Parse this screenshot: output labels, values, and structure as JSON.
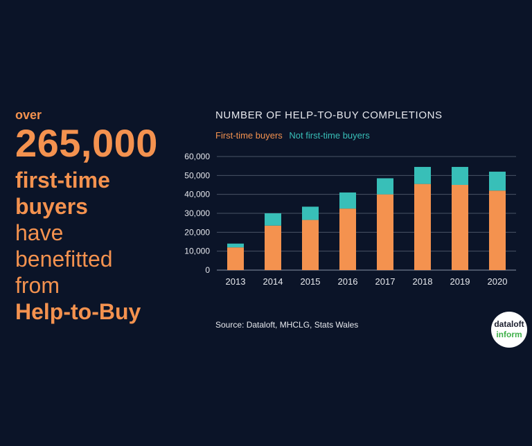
{
  "headline": {
    "over": "over",
    "number": "265,000",
    "line1": "first-time",
    "line2": "buyers",
    "line3": "have",
    "line4": "benefitted",
    "line5": "from",
    "line6": "Help-to-Buy"
  },
  "source": "Source: Dataloft, MHCLG, Stats Wales",
  "logo": {
    "line1": "dataloft",
    "line2": "inform"
  },
  "colors": {
    "first_time": "#f4924f",
    "not_first_time": "#38bfb8",
    "background": "#0b1428"
  },
  "chart_data": {
    "type": "bar",
    "stacked": true,
    "title": "NUMBER OF HELP-TO-BUY COMPLETIONS",
    "categories": [
      "2013",
      "2014",
      "2015",
      "2016",
      "2017",
      "2018",
      "2019",
      "2020"
    ],
    "series": [
      {
        "name": "First-time buyers",
        "values": [
          12000,
          23500,
          26500,
          32500,
          40000,
          45500,
          45000,
          42000
        ]
      },
      {
        "name": "Not first-time buyers",
        "values": [
          2000,
          6500,
          7000,
          8500,
          8500,
          9000,
          9500,
          10000
        ]
      }
    ],
    "ylim": [
      0,
      60000
    ],
    "yticks": [
      "0",
      "10,000",
      "20,000",
      "30,000",
      "40,000",
      "50,000",
      "60,000"
    ],
    "ytick_values": [
      0,
      10000,
      20000,
      30000,
      40000,
      50000,
      60000
    ],
    "grid": true,
    "legend": "top-left"
  }
}
